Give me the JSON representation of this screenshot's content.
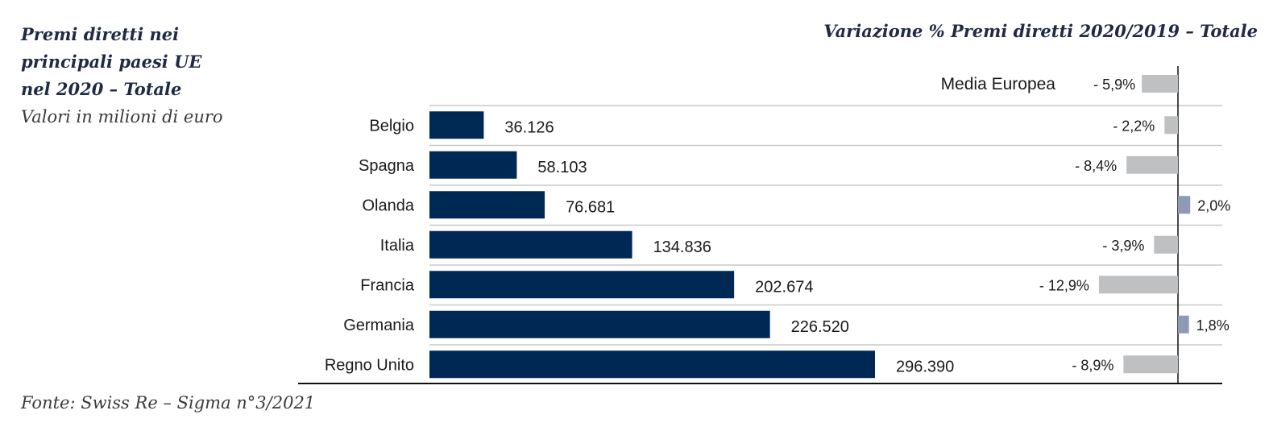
{
  "title_lines": [
    "Premi diretti nei",
    "principali paesi UE",
    "nel 2020 – Totale"
  ],
  "subtitle": "Valori in milioni di euro",
  "right_title": "Variazione % Premi diretti 2020/2019 – Totale",
  "source": "Fonte: Swiss Re – Sigma n°3/2021",
  "colors": {
    "bar": "#002855",
    "neg": "#bfc0c1",
    "pos": "#8c9ab5",
    "grid": "#c8c8c8",
    "axis": "#111111",
    "text": "#1a1a1a"
  },
  "chart_data": [
    {
      "type": "bar",
      "orientation": "horizontal",
      "categories": [
        "Belgio",
        "Spagna",
        "Olanda",
        "Italia",
        "Francia",
        "Germania",
        "Regno Unito"
      ],
      "values": [
        36126,
        58103,
        76681,
        134836,
        202674,
        226520,
        296390
      ],
      "value_labels": [
        "36.126",
        "58.103",
        "76.681",
        "134.836",
        "202.674",
        "226.520",
        "296.390"
      ],
      "title": "Premi diretti nei principali paesi UE nel 2020 – Totale",
      "unit": "Valori in milioni di euro"
    },
    {
      "type": "bar",
      "orientation": "horizontal",
      "average_label": "Media Europea",
      "average_value": -5.9,
      "average_value_label": "- 5,9%",
      "categories": [
        "Belgio",
        "Spagna",
        "Olanda",
        "Italia",
        "Francia",
        "Germania",
        "Regno Unito"
      ],
      "values": [
        -2.2,
        -8.4,
        2.0,
        -3.9,
        -12.9,
        1.8,
        -8.9
      ],
      "value_labels": [
        "- 2,2%",
        "- 8,4%",
        "2,0%",
        "- 3,9%",
        "- 12,9%",
        "1,8%",
        "- 8,9%"
      ],
      "title": "Variazione % Premi diretti 2020/2019 – Totale"
    }
  ]
}
